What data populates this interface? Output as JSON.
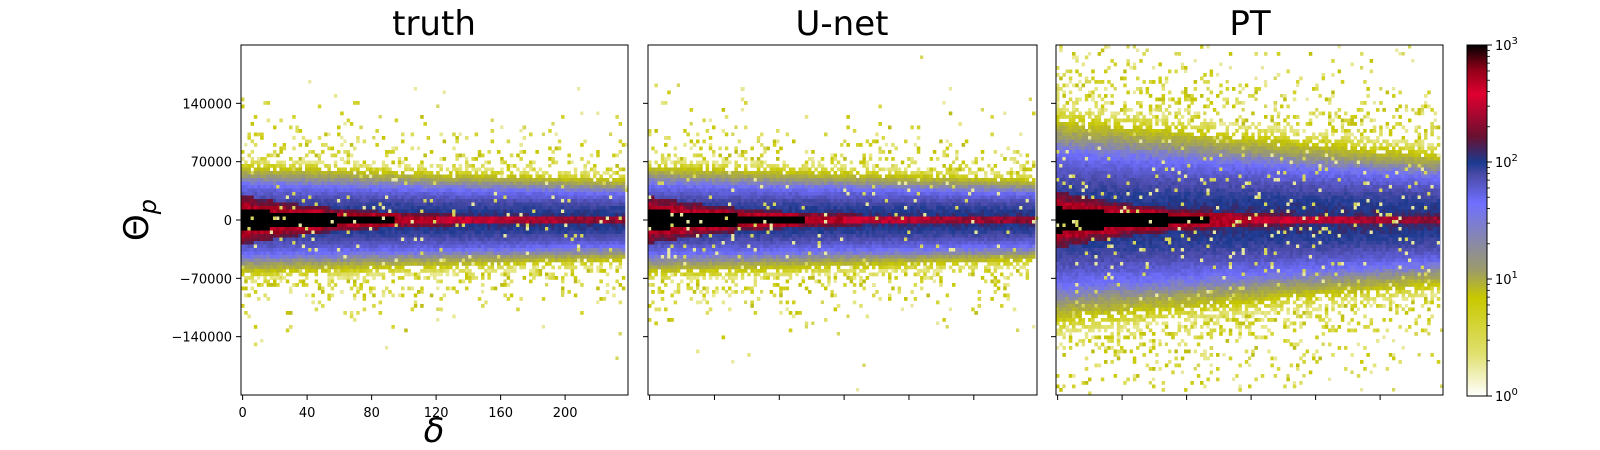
{
  "chart_data": [
    {
      "type": "heatmap",
      "title": "truth",
      "xlabel": "δ",
      "ylabel": "Θp",
      "ylabel_main": "Θ",
      "ylabel_sub": "p",
      "x_ticks": [
        "0",
        "40",
        "80",
        "120",
        "160",
        "200"
      ],
      "x_tick_values": [
        0,
        40,
        80,
        120,
        160,
        200
      ],
      "y_ticks": [
        "140000",
        "70000",
        "0",
        "−70000",
        "−140000"
      ],
      "y_tick_values": [
        140000,
        70000,
        0,
        -70000,
        -140000
      ],
      "xlim": [
        -1,
        239
      ],
      "ylim": [
        -210000,
        210000
      ],
      "density": {
        "core_halfwidth_at_0": 22000,
        "core_slope": -0.075,
        "spread_sigma_at_0": 33000,
        "spread_sigma_at_max": 25000,
        "tail_count": 190
      }
    },
    {
      "type": "heatmap",
      "title": "U-net",
      "xlim": [
        -1,
        239
      ],
      "ylim": [
        -210000,
        210000
      ],
      "density": {
        "core_halfwidth_at_0": 21000,
        "core_slope": -0.07,
        "spread_sigma_at_0": 33000,
        "spread_sigma_at_max": 25000,
        "tail_count": 190
      }
    },
    {
      "type": "heatmap",
      "title": "PT",
      "xlim": [
        -1,
        239
      ],
      "ylim": [
        -210000,
        210000
      ],
      "density": {
        "core_halfwidth_at_0": 26000,
        "core_slope": -0.08,
        "spread_sigma_at_0": 62000,
        "spread_sigma_at_max": 40000,
        "tail_count": 520
      }
    }
  ],
  "colorbar": {
    "scale": "log",
    "min": 1,
    "max": 1000,
    "tick_labels": [
      {
        "base": "10",
        "exp": "3",
        "value": 1000
      },
      {
        "base": "10",
        "exp": "2",
        "value": 100
      },
      {
        "base": "10",
        "exp": "1",
        "value": 10
      },
      {
        "base": "10",
        "exp": "0",
        "value": 1
      }
    ],
    "colors": [
      "#ffffff",
      "#c8c800",
      "#9b9b6b",
      "#6f6fff",
      "#1b3a8f",
      "#c00020",
      "#e00030",
      "#000000"
    ]
  }
}
